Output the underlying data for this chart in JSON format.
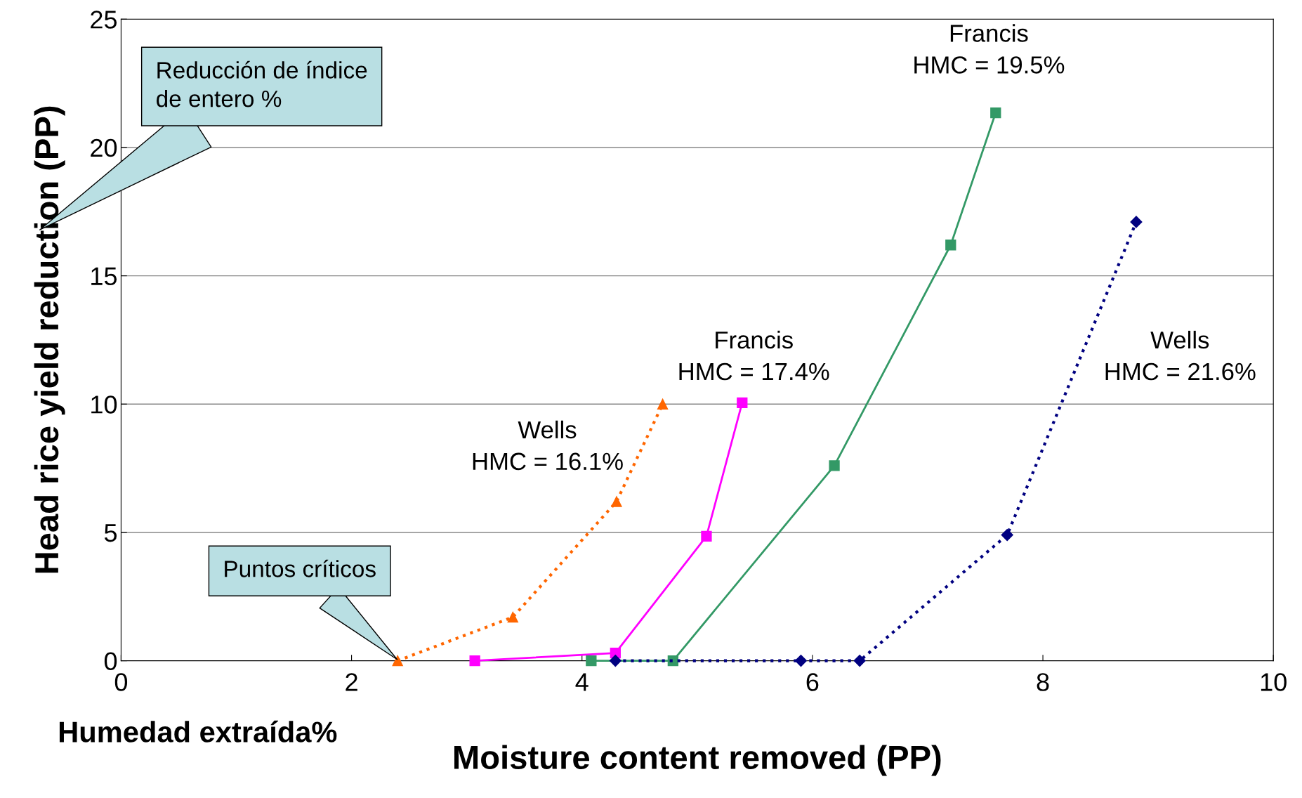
{
  "chart_data": {
    "type": "line",
    "xlabel": "Moisture content removed (PP)",
    "ylabel": "Head rice yield reduction (PP)",
    "xlim": [
      0,
      10
    ],
    "xticks": [
      0,
      2,
      4,
      6,
      8,
      10
    ],
    "ylim": [
      0,
      25
    ],
    "yticks": [
      0,
      5,
      10,
      15,
      20,
      25
    ],
    "grid": "y",
    "series": [
      {
        "name": "Wells\nHMC = 16.1%",
        "color": "#ff6600",
        "marker": "triangle",
        "line_style": "dotted",
        "x": [
          2.4,
          3.4,
          4.3,
          4.7
        ],
        "values": [
          0,
          1.7,
          6.2,
          10.0
        ]
      },
      {
        "name": "Francis\nHMC = 17.4%",
        "color": "#ff00ff",
        "marker": "square",
        "line_style": "solid",
        "x": [
          3.07,
          4.29,
          5.08,
          5.39
        ],
        "values": [
          0,
          0.3,
          4.85,
          10.05
        ]
      },
      {
        "name": "Francis\nHMC = 19.5%",
        "color": "#339966",
        "marker": "square",
        "line_style": "solid",
        "x": [
          4.08,
          4.79,
          6.19,
          7.2,
          7.59
        ],
        "values": [
          0,
          0,
          7.6,
          16.2,
          21.35
        ]
      },
      {
        "name": "Wells\nHMC = 21.6%",
        "color": "#000080",
        "marker": "diamond",
        "line_style": "dotted",
        "x": [
          4.29,
          5.9,
          6.41,
          7.69,
          8.81
        ],
        "values": [
          0,
          0,
          0,
          4.9,
          17.1
        ]
      }
    ],
    "annotations": [
      "Reducción de índice\nde entero %",
      "Puntos críticos",
      "Humedad extraída%"
    ]
  }
}
